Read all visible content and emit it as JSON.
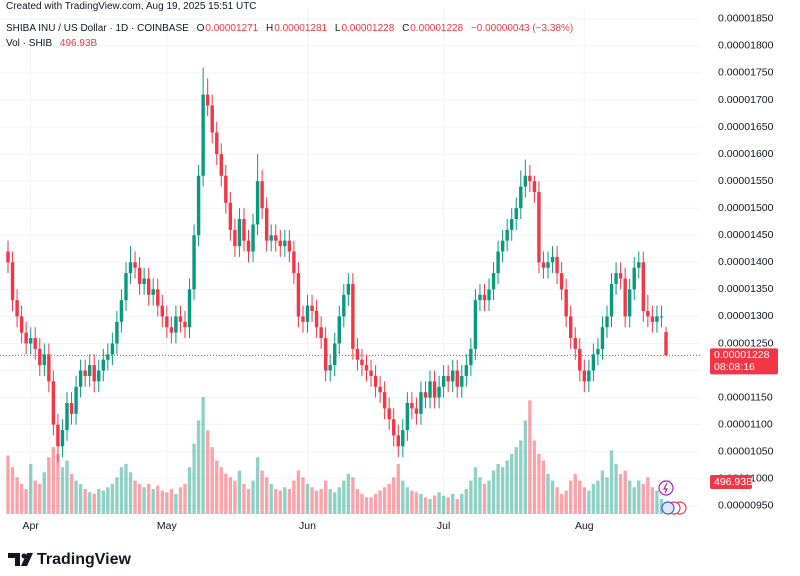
{
  "chart_data": {
    "type": "candlestick",
    "watermark": "Created with TradingView.com, Aug 19, 2025 15:51 UTC",
    "title": "SHIBA INU / US Dollar · 1D · COINBASE",
    "legend": [
      {
        "key": "O",
        "value": "0.00001271"
      },
      {
        "key": "H",
        "value": "0.00001281"
      },
      {
        "key": "L",
        "value": "0.00001228"
      },
      {
        "key": "C",
        "value": "0.00001228"
      }
    ],
    "change": "−0.00000043 (−3.38%)",
    "volume_title": "Vol · SHIB",
    "volume_value": "496.93B",
    "last_price_label": "0.00001228",
    "countdown": "08:08:16",
    "volume_label": "496.93B",
    "brand": "TradingView",
    "up_color": "#089981",
    "down_color": "#f23645",
    "grid": true,
    "ylim": [
      9.33e-06,
      1.87e-05
    ],
    "yticks": [
      {
        "value": 9.5e-06,
        "label": "0.00000950"
      },
      {
        "value": 1e-05,
        "label": "0.00001000"
      },
      {
        "value": 1.05e-05,
        "label": "0.00001050"
      },
      {
        "value": 1.1e-05,
        "label": "0.00001100"
      },
      {
        "value": 1.15e-05,
        "label": "0.00001150"
      },
      {
        "value": 1.2e-05,
        "label": "0.00001200"
      },
      {
        "value": 1.25e-05,
        "label": "0.00001250"
      },
      {
        "value": 1.3e-05,
        "label": "0.00001300"
      },
      {
        "value": 1.35e-05,
        "label": "0.00001350"
      },
      {
        "value": 1.4e-05,
        "label": "0.00001400"
      },
      {
        "value": 1.45e-05,
        "label": "0.00001450"
      },
      {
        "value": 1.5e-05,
        "label": "0.00001500"
      },
      {
        "value": 1.55e-05,
        "label": "0.00001550"
      },
      {
        "value": 1.6e-05,
        "label": "0.00001600"
      },
      {
        "value": 1.65e-05,
        "label": "0.00001650"
      },
      {
        "value": 1.7e-05,
        "label": "0.00001700"
      },
      {
        "value": 1.75e-05,
        "label": "0.00001750"
      },
      {
        "value": 1.8e-05,
        "label": "0.00001800"
      },
      {
        "value": 1.85e-05,
        "label": "0.00001850"
      }
    ],
    "categories": [
      null,
      null,
      null,
      null,
      null,
      "Apr",
      null,
      null,
      null,
      null,
      null,
      null,
      null,
      null,
      null,
      null,
      null,
      null,
      null,
      null,
      null,
      null,
      null,
      null,
      null,
      null,
      null,
      null,
      null,
      null,
      null,
      null,
      null,
      null,
      null,
      "May",
      null,
      null,
      null,
      null,
      null,
      null,
      null,
      null,
      null,
      null,
      null,
      null,
      null,
      null,
      null,
      null,
      null,
      null,
      null,
      null,
      null,
      null,
      null,
      null,
      null,
      null,
      null,
      null,
      null,
      null,
      "Jun",
      null,
      null,
      null,
      null,
      null,
      null,
      null,
      null,
      null,
      null,
      null,
      null,
      null,
      null,
      null,
      null,
      null,
      null,
      null,
      null,
      null,
      null,
      null,
      null,
      null,
      null,
      null,
      null,
      null,
      "Jul",
      null,
      null,
      null,
      null,
      null,
      null,
      null,
      null,
      null,
      null,
      null,
      null,
      null,
      null,
      null,
      null,
      null,
      null,
      null,
      null,
      null,
      null,
      null,
      null,
      null,
      null,
      null,
      null,
      null,
      null,
      "Aug",
      null,
      null,
      null,
      null,
      null,
      null,
      null,
      null,
      null,
      null,
      null,
      null,
      null,
      null,
      null,
      null,
      null,
      null
    ],
    "open": [
      1.42e-05,
      1.4e-05,
      1.33e-05,
      1.3e-05,
      1.27e-05,
      1.25e-05,
      1.26e-05,
      1.24e-05,
      1.21e-05,
      1.23e-05,
      1.18e-05,
      1.1e-05,
      1.06e-05,
      1.09e-05,
      1.14e-05,
      1.12e-05,
      1.17e-05,
      1.2e-05,
      1.19e-05,
      1.21e-05,
      1.18e-05,
      1.2e-05,
      1.22e-05,
      1.23e-05,
      1.25e-05,
      1.29e-05,
      1.33e-05,
      1.38e-05,
      1.4e-05,
      1.39e-05,
      1.36e-05,
      1.37e-05,
      1.34e-05,
      1.35e-05,
      1.32e-05,
      1.3e-05,
      1.28e-05,
      1.27e-05,
      1.3e-05,
      1.29e-05,
      1.28e-05,
      1.35e-05,
      1.45e-05,
      1.56e-05,
      1.71e-05,
      1.69e-05,
      1.64e-05,
      1.6e-05,
      1.56e-05,
      1.51e-05,
      1.46e-05,
      1.43e-05,
      1.48e-05,
      1.44e-05,
      1.42e-05,
      1.47e-05,
      1.55e-05,
      1.5e-05,
      1.44e-05,
      1.45e-05,
      1.44e-05,
      1.43e-05,
      1.44e-05,
      1.42e-05,
      1.38e-05,
      1.3e-05,
      1.29e-05,
      1.32e-05,
      1.31e-05,
      1.28e-05,
      1.26e-05,
      1.2e-05,
      1.21e-05,
      1.25e-05,
      1.3e-05,
      1.34e-05,
      1.36e-05,
      1.24e-05,
      1.22e-05,
      1.21e-05,
      1.2e-05,
      1.19e-05,
      1.17e-05,
      1.16e-05,
      1.13e-05,
      1.11e-05,
      1.08e-05,
      1.06e-05,
      1.09e-05,
      1.14e-05,
      1.13e-05,
      1.12e-05,
      1.16e-05,
      1.15e-05,
      1.18e-05,
      1.15e-05,
      1.17e-05,
      1.19e-05,
      1.18e-05,
      1.2e-05,
      1.17e-05,
      1.19e-05,
      1.21e-05,
      1.24e-05,
      1.33e-05,
      1.34e-05,
      1.33e-05,
      1.35e-05,
      1.38e-05,
      1.42e-05,
      1.44e-05,
      1.46e-05,
      1.48e-05,
      1.5e-05,
      1.54e-05,
      1.56e-05,
      1.55e-05,
      1.53e-05,
      1.4e-05,
      1.39e-05,
      1.4e-05,
      1.41e-05,
      1.38e-05,
      1.35e-05,
      1.3e-05,
      1.26e-05,
      1.24e-05,
      1.2e-05,
      1.18e-05,
      1.2e-05,
      1.23e-05,
      1.24e-05,
      1.28e-05,
      1.3e-05,
      1.36e-05,
      1.38e-05,
      1.37e-05,
      1.3e-05,
      1.35e-05,
      1.39e-05,
      1.4e-05,
      1.31e-05,
      1.3e-05,
      1.29e-05,
      1.3e-05,
      1.271e-05
    ],
    "high": [
      1.44e-05,
      1.42e-05,
      1.35e-05,
      1.32e-05,
      1.29e-05,
      1.28e-05,
      1.28e-05,
      1.26e-05,
      1.25e-05,
      1.25e-05,
      1.2e-05,
      1.12e-05,
      1.11e-05,
      1.16e-05,
      1.16e-05,
      1.19e-05,
      1.22e-05,
      1.22e-05,
      1.23e-05,
      1.23e-05,
      1.22e-05,
      1.24e-05,
      1.25e-05,
      1.27e-05,
      1.31e-05,
      1.35e-05,
      1.4e-05,
      1.43e-05,
      1.42e-05,
      1.41e-05,
      1.39e-05,
      1.39e-05,
      1.37e-05,
      1.37e-05,
      1.34e-05,
      1.32e-05,
      1.3e-05,
      1.32e-05,
      1.32e-05,
      1.31e-05,
      1.37e-05,
      1.47e-05,
      1.58e-05,
      1.76e-05,
      1.74e-05,
      1.71e-05,
      1.66e-05,
      1.62e-05,
      1.58e-05,
      1.53e-05,
      1.48e-05,
      1.5e-05,
      1.5e-05,
      1.46e-05,
      1.49e-05,
      1.6e-05,
      1.57e-05,
      1.52e-05,
      1.47e-05,
      1.47e-05,
      1.46e-05,
      1.46e-05,
      1.46e-05,
      1.44e-05,
      1.4e-05,
      1.32e-05,
      1.34e-05,
      1.34e-05,
      1.33e-05,
      1.3e-05,
      1.28e-05,
      1.23e-05,
      1.27e-05,
      1.32e-05,
      1.36e-05,
      1.38e-05,
      1.38e-05,
      1.26e-05,
      1.24e-05,
      1.23e-05,
      1.22e-05,
      1.21e-05,
      1.19e-05,
      1.18e-05,
      1.15e-05,
      1.13e-05,
      1.1e-05,
      1.11e-05,
      1.16e-05,
      1.16e-05,
      1.15e-05,
      1.18e-05,
      1.18e-05,
      1.2e-05,
      1.2e-05,
      1.19e-05,
      1.21e-05,
      1.21e-05,
      1.22e-05,
      1.22e-05,
      1.21e-05,
      1.23e-05,
      1.26e-05,
      1.35e-05,
      1.36e-05,
      1.36e-05,
      1.37e-05,
      1.4e-05,
      1.44e-05,
      1.46e-05,
      1.48e-05,
      1.5e-05,
      1.52e-05,
      1.57e-05,
      1.59e-05,
      1.58e-05,
      1.56e-05,
      1.55e-05,
      1.42e-05,
      1.42e-05,
      1.43e-05,
      1.43e-05,
      1.4e-05,
      1.37e-05,
      1.32e-05,
      1.28e-05,
      1.26e-05,
      1.22e-05,
      1.22e-05,
      1.25e-05,
      1.26e-05,
      1.3e-05,
      1.32e-05,
      1.38e-05,
      1.4e-05,
      1.4e-05,
      1.39e-05,
      1.37e-05,
      1.41e-05,
      1.42e-05,
      1.42e-05,
      1.34e-05,
      1.32e-05,
      1.32e-05,
      1.32e-05,
      1.281e-05
    ],
    "low": [
      1.38e-05,
      1.31e-05,
      1.28e-05,
      1.25e-05,
      1.23e-05,
      1.23e-05,
      1.22e-05,
      1.19e-05,
      1.19e-05,
      1.16e-05,
      1.08e-05,
      1.03e-05,
      1.04e-05,
      1.07e-05,
      1.1e-05,
      1.1e-05,
      1.15e-05,
      1.17e-05,
      1.17e-05,
      1.16e-05,
      1.16e-05,
      1.18e-05,
      1.2e-05,
      1.21e-05,
      1.23e-05,
      1.27e-05,
      1.31e-05,
      1.36e-05,
      1.37e-05,
      1.34e-05,
      1.34e-05,
      1.32e-05,
      1.32e-05,
      1.3e-05,
      1.28e-05,
      1.26e-05,
      1.25e-05,
      1.25e-05,
      1.27e-05,
      1.26e-05,
      1.26e-05,
      1.33e-05,
      1.43e-05,
      1.54e-05,
      1.67e-05,
      1.62e-05,
      1.58e-05,
      1.54e-05,
      1.49e-05,
      1.44e-05,
      1.41e-05,
      1.41e-05,
      1.42e-05,
      1.4e-05,
      1.4e-05,
      1.45e-05,
      1.48e-05,
      1.42e-05,
      1.42e-05,
      1.42e-05,
      1.41e-05,
      1.41e-05,
      1.4e-05,
      1.36e-05,
      1.28e-05,
      1.27e-05,
      1.27e-05,
      1.29e-05,
      1.26e-05,
      1.24e-05,
      1.18e-05,
      1.18e-05,
      1.19e-05,
      1.23e-05,
      1.28e-05,
      1.32e-05,
      1.22e-05,
      1.2e-05,
      1.19e-05,
      1.18e-05,
      1.17e-05,
      1.15e-05,
      1.14e-05,
      1.11e-05,
      1.09e-05,
      1.06e-05,
      1.04e-05,
      1.04e-05,
      1.07e-05,
      1.11e-05,
      1.1e-05,
      1.1e-05,
      1.13e-05,
      1.13e-05,
      1.13e-05,
      1.13e-05,
      1.15e-05,
      1.16e-05,
      1.16e-05,
      1.15e-05,
      1.15e-05,
      1.17e-05,
      1.19e-05,
      1.22e-05,
      1.31e-05,
      1.31e-05,
      1.31e-05,
      1.33e-05,
      1.36e-05,
      1.4e-05,
      1.42e-05,
      1.44e-05,
      1.46e-05,
      1.48e-05,
      1.52e-05,
      1.53e-05,
      1.51e-05,
      1.38e-05,
      1.37e-05,
      1.37e-05,
      1.38e-05,
      1.36e-05,
      1.33e-05,
      1.28e-05,
      1.24e-05,
      1.22e-05,
      1.18e-05,
      1.16e-05,
      1.16e-05,
      1.18e-05,
      1.21e-05,
      1.22e-05,
      1.26e-05,
      1.28e-05,
      1.34e-05,
      1.35e-05,
      1.28e-05,
      1.28e-05,
      1.33e-05,
      1.37e-05,
      1.29e-05,
      1.28e-05,
      1.27e-05,
      1.27e-05,
      1.28e-05,
      1.228e-05
    ],
    "close": [
      1.4e-05,
      1.33e-05,
      1.3e-05,
      1.27e-05,
      1.25e-05,
      1.26e-05,
      1.24e-05,
      1.21e-05,
      1.23e-05,
      1.18e-05,
      1.1e-05,
      1.06e-05,
      1.09e-05,
      1.14e-05,
      1.12e-05,
      1.17e-05,
      1.2e-05,
      1.19e-05,
      1.21e-05,
      1.18e-05,
      1.2e-05,
      1.22e-05,
      1.23e-05,
      1.25e-05,
      1.29e-05,
      1.33e-05,
      1.38e-05,
      1.4e-05,
      1.39e-05,
      1.36e-05,
      1.37e-05,
      1.34e-05,
      1.35e-05,
      1.32e-05,
      1.3e-05,
      1.28e-05,
      1.27e-05,
      1.3e-05,
      1.29e-05,
      1.28e-05,
      1.35e-05,
      1.45e-05,
      1.56e-05,
      1.71e-05,
      1.69e-05,
      1.64e-05,
      1.6e-05,
      1.56e-05,
      1.51e-05,
      1.46e-05,
      1.43e-05,
      1.48e-05,
      1.44e-05,
      1.42e-05,
      1.47e-05,
      1.55e-05,
      1.5e-05,
      1.44e-05,
      1.45e-05,
      1.44e-05,
      1.43e-05,
      1.44e-05,
      1.42e-05,
      1.38e-05,
      1.3e-05,
      1.29e-05,
      1.32e-05,
      1.31e-05,
      1.28e-05,
      1.26e-05,
      1.2e-05,
      1.21e-05,
      1.25e-05,
      1.3e-05,
      1.34e-05,
      1.36e-05,
      1.24e-05,
      1.22e-05,
      1.21e-05,
      1.2e-05,
      1.19e-05,
      1.17e-05,
      1.16e-05,
      1.13e-05,
      1.11e-05,
      1.08e-05,
      1.06e-05,
      1.09e-05,
      1.14e-05,
      1.13e-05,
      1.12e-05,
      1.16e-05,
      1.15e-05,
      1.18e-05,
      1.15e-05,
      1.17e-05,
      1.19e-05,
      1.18e-05,
      1.2e-05,
      1.17e-05,
      1.19e-05,
      1.21e-05,
      1.24e-05,
      1.33e-05,
      1.34e-05,
      1.33e-05,
      1.35e-05,
      1.38e-05,
      1.42e-05,
      1.44e-05,
      1.46e-05,
      1.48e-05,
      1.5e-05,
      1.54e-05,
      1.56e-05,
      1.55e-05,
      1.53e-05,
      1.4e-05,
      1.39e-05,
      1.4e-05,
      1.41e-05,
      1.38e-05,
      1.35e-05,
      1.3e-05,
      1.26e-05,
      1.24e-05,
      1.2e-05,
      1.18e-05,
      1.2e-05,
      1.23e-05,
      1.24e-05,
      1.28e-05,
      1.3e-05,
      1.36e-05,
      1.38e-05,
      1.37e-05,
      1.3e-05,
      1.35e-05,
      1.39e-05,
      1.4e-05,
      1.31e-05,
      1.3e-05,
      1.29e-05,
      1.3e-05,
      1.3e-05,
      1.228e-05
    ],
    "volume": [
      3500,
      2800,
      2200,
      1800,
      1500,
      3000,
      2000,
      1800,
      2500,
      3400,
      4000,
      3600,
      2800,
      3200,
      2400,
      2000,
      1800,
      1500,
      1300,
      1200,
      1500,
      1400,
      1600,
      1800,
      2200,
      2800,
      3000,
      2500,
      2000,
      1800,
      1600,
      1800,
      1500,
      1700,
      1400,
      1300,
      1500,
      1200,
      1600,
      1800,
      2800,
      4200,
      5600,
      7000,
      5000,
      4000,
      3200,
      2800,
      2400,
      2200,
      2000,
      2600,
      1800,
      1500,
      2000,
      3400,
      2600,
      2200,
      1800,
      1500,
      1400,
      1600,
      1500,
      2000,
      2600,
      2200,
      1800,
      1600,
      1400,
      1500,
      2000,
      1500,
      1300,
      1600,
      2000,
      2400,
      2200,
      1500,
      1200,
      1000,
      1000,
      1200,
      1400,
      1600,
      1800,
      2200,
      3000,
      2000,
      1600,
      1400,
      1300,
      1200,
      1000,
      900,
      1100,
      1300,
      1100,
      1000,
      1200,
      900,
      1200,
      1500,
      2000,
      2800,
      2200,
      1800,
      2000,
      2600,
      3000,
      2800,
      3200,
      3600,
      4000,
      4400,
      5600,
      6800,
      4400,
      3600,
      3200,
      2400,
      2000,
      1600,
      1200,
      1400,
      2000,
      2400,
      2000,
      1600,
      1400,
      1800,
      2000,
      2600,
      2200,
      3800,
      3000,
      2400,
      2600,
      2000,
      1600,
      2000,
      1800,
      2200,
      1600,
      1400,
      900,
      496.93
    ]
  }
}
